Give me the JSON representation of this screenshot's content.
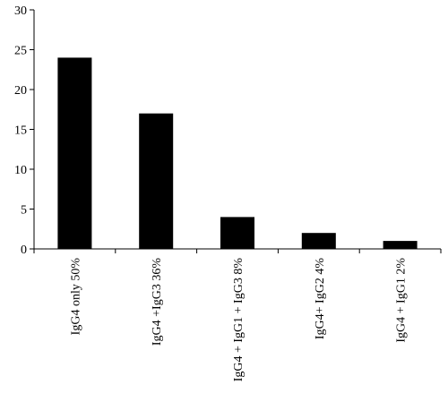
{
  "chart_data": {
    "type": "bar",
    "categories": [
      "IgG4 only 50%",
      "IgG4 +IgG3 36%",
      "IgG4 + IgG1 + IgG3 8%",
      "IgG4+ IgG2 4%",
      "IgG4 + IgG1 2%"
    ],
    "values": [
      24,
      17,
      4,
      2,
      1
    ],
    "ylim": [
      0,
      30
    ],
    "yticks": [
      0,
      5,
      10,
      15,
      20,
      25,
      30
    ],
    "grid": false,
    "legend": "none",
    "title": "",
    "xlabel": "",
    "ylabel": "",
    "colors": {
      "bar": "#000000",
      "axis": "#000000",
      "background": "#ffffff"
    }
  }
}
